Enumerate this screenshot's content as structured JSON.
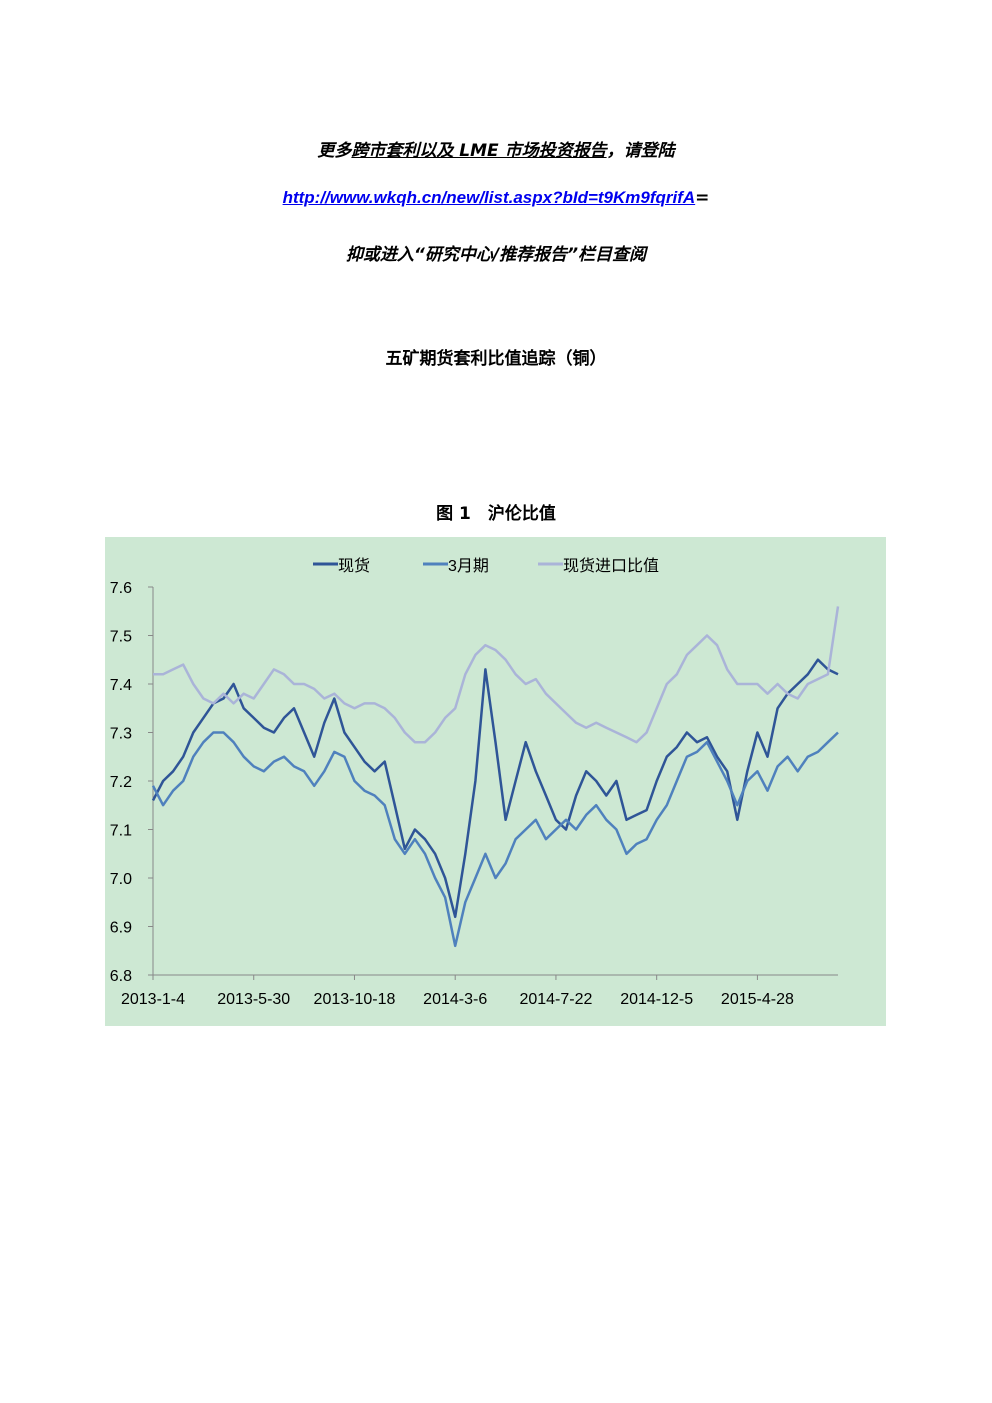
{
  "document": {
    "intro_pre": "更多",
    "intro_underlined": "跨市套利以及 LME 市场投资报告",
    "intro_post": "，请登陆",
    "link": "http://www.wkqh.cn/new/list.aspx?bId=t9Km9fqrifA",
    "link_suffix": "=",
    "line3": "抑或进入“研究中心/推荐报告”栏目查阅",
    "heading": "五矿期货套利比值追踪（铜）",
    "figure_caption": "图 1　沪伦比值"
  },
  "chart_data": {
    "type": "line",
    "legend": "top",
    "background": "#cde8d3",
    "categories": [
      "2013-1-4",
      null,
      null,
      null,
      null,
      null,
      null,
      null,
      null,
      null,
      "2013-5-30",
      null,
      null,
      null,
      null,
      null,
      null,
      null,
      null,
      null,
      "2013-10-18",
      null,
      null,
      null,
      null,
      null,
      null,
      null,
      null,
      null,
      "2014-3-6",
      null,
      null,
      null,
      null,
      null,
      null,
      null,
      null,
      null,
      "2014-7-22",
      null,
      null,
      null,
      null,
      null,
      null,
      null,
      null,
      null,
      "2014-12-5",
      null,
      null,
      null,
      null,
      null,
      null,
      null,
      null,
      null,
      "2015-4-28",
      null,
      null,
      null,
      null,
      null,
      null,
      null,
      null
    ],
    "ylim": [
      6.8,
      7.6
    ],
    "yticks": [
      6.8,
      6.9,
      {
        "value": 7,
        "label": "7.0"
      },
      7.1,
      7.2,
      7.3,
      7.4,
      7.5,
      7.6
    ],
    "series": [
      {
        "name": "现货",
        "color": "#2f5597",
        "values": [
          7.16,
          7.2,
          7.22,
          7.25,
          7.3,
          7.33,
          7.36,
          7.37,
          7.4,
          7.35,
          7.33,
          7.31,
          7.3,
          7.33,
          7.35,
          7.3,
          7.25,
          7.32,
          7.37,
          7.3,
          7.27,
          7.24,
          7.22,
          7.24,
          7.15,
          7.06,
          7.1,
          7.08,
          7.05,
          7.0,
          6.92,
          7.05,
          7.2,
          7.43,
          7.28,
          7.12,
          7.2,
          7.28,
          7.22,
          7.17,
          7.12,
          7.1,
          7.17,
          7.22,
          7.2,
          7.17,
          7.2,
          7.12,
          7.13,
          7.14,
          7.2,
          7.25,
          7.27,
          7.3,
          7.28,
          7.29,
          7.25,
          7.22,
          7.12,
          7.22,
          7.3,
          7.25,
          7.35,
          7.38,
          7.4,
          7.42,
          7.45,
          7.43,
          7.42
        ]
      },
      {
        "name": "3月期",
        "color": "#4f81bd",
        "values": [
          7.19,
          7.15,
          7.18,
          7.2,
          7.25,
          7.28,
          7.3,
          7.3,
          7.28,
          7.25,
          7.23,
          7.22,
          7.24,
          7.25,
          7.23,
          7.22,
          7.19,
          7.22,
          7.26,
          7.25,
          7.2,
          7.18,
          7.17,
          7.15,
          7.08,
          7.05,
          7.08,
          7.05,
          7.0,
          6.96,
          6.86,
          6.95,
          7.0,
          7.05,
          7.0,
          7.03,
          7.08,
          7.1,
          7.12,
          7.08,
          7.1,
          7.12,
          7.1,
          7.13,
          7.15,
          7.12,
          7.1,
          7.05,
          7.07,
          7.08,
          7.12,
          7.15,
          7.2,
          7.25,
          7.26,
          7.28,
          7.24,
          7.2,
          7.15,
          7.2,
          7.22,
          7.18,
          7.23,
          7.25,
          7.22,
          7.25,
          7.26,
          7.28,
          7.3
        ]
      },
      {
        "name": "现货进口比值",
        "color": "#aab4d8",
        "values": [
          7.42,
          7.42,
          7.43,
          7.44,
          7.4,
          7.37,
          7.36,
          7.38,
          7.36,
          7.38,
          7.37,
          7.4,
          7.43,
          7.42,
          7.4,
          7.4,
          7.39,
          7.37,
          7.38,
          7.36,
          7.35,
          7.36,
          7.36,
          7.35,
          7.33,
          7.3,
          7.28,
          7.28,
          7.3,
          7.33,
          7.35,
          7.42,
          7.46,
          7.48,
          7.47,
          7.45,
          7.42,
          7.4,
          7.41,
          7.38,
          7.36,
          7.34,
          7.32,
          7.31,
          7.32,
          7.31,
          7.3,
          7.29,
          7.28,
          7.3,
          7.35,
          7.4,
          7.42,
          7.46,
          7.48,
          7.5,
          7.48,
          7.43,
          7.4,
          7.4,
          7.4,
          7.38,
          7.4,
          7.38,
          7.37,
          7.4,
          7.41,
          7.42,
          7.56
        ]
      }
    ]
  }
}
